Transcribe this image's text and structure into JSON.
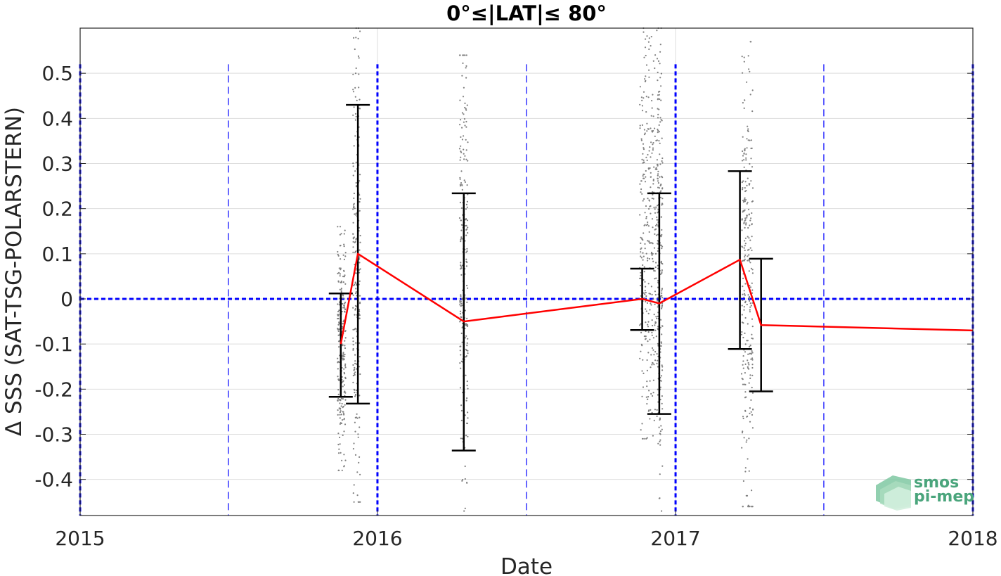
{
  "chart_data": {
    "type": "scatter",
    "title": "0°≤|LAT|≤ 80°",
    "xlabel": "Date",
    "ylabel": "Δ SSS (SAT-TSG-POLARSTERN)",
    "x_range": [
      "2015-01-01",
      "2018-01-01"
    ],
    "ylim": [
      -0.48,
      0.6
    ],
    "x_tick_labels": [
      "2015",
      "2016",
      "2017",
      "2018"
    ],
    "x_ticks": [
      "2015-01-01",
      "2016-01-01",
      "2017-01-01",
      "2018-01-01"
    ],
    "y_ticks": [
      0.5,
      0.4,
      0.3,
      0.2,
      0.1,
      0,
      -0.1,
      -0.2,
      -0.3,
      -0.4
    ],
    "y_tick_labels": [
      "0.5",
      "0.4",
      "0.3",
      "0.2",
      "0.1",
      "0",
      "-0.1",
      "-0.2",
      "-0.3",
      "-0.4"
    ],
    "grid": true,
    "colors": {
      "mean_line": "#ff0000",
      "error_bars": "#000000",
      "scatter": "#808080",
      "reference_lines": "#0000ff",
      "grid": "#dddddd",
      "logo": "#4aa57c"
    },
    "series": [
      {
        "type": "line",
        "points": [
          {
            "x": "2015-11-17",
            "y": -0.1
          },
          {
            "x": "2015-12-08",
            "y": 0.1
          },
          {
            "x": "2016-04-16",
            "y": -0.05
          },
          {
            "x": "2016-11-21",
            "y": 0.0
          },
          {
            "x": "2016-12-12",
            "y": -0.01
          },
          {
            "x": "2017-03-21",
            "y": 0.087
          },
          {
            "x": "2017-04-16",
            "y": -0.058
          },
          {
            "x": "2018-01-01",
            "y": -0.07
          }
        ]
      },
      {
        "type": "errorbar",
        "bars": [
          {
            "x": "2015-11-17",
            "low": -0.217,
            "high": 0.012
          },
          {
            "x": "2015-12-08",
            "low": -0.232,
            "high": 0.43
          },
          {
            "x": "2016-04-16",
            "low": -0.336,
            "high": 0.234
          },
          {
            "x": "2016-11-21",
            "low": -0.069,
            "high": 0.067
          },
          {
            "x": "2016-12-12",
            "low": -0.255,
            "high": 0.234
          },
          {
            "x": "2017-03-21",
            "low": -0.111,
            "high": 0.283
          },
          {
            "x": "2017-04-16",
            "low": -0.205,
            "high": 0.089
          }
        ]
      },
      {
        "type": "scatter-cloud",
        "clusters": [
          {
            "x_start": "2015-11-13",
            "x_end": "2015-11-23",
            "y_min": -0.38,
            "y_max": 0.16
          },
          {
            "x_start": "2015-12-02",
            "x_end": "2015-12-11",
            "y_min": -0.45,
            "y_max": 0.6
          },
          {
            "x_start": "2016-04-11",
            "x_end": "2016-04-21",
            "y_min": -0.47,
            "y_max": 0.54
          },
          {
            "x_start": "2016-11-18",
            "x_end": "2016-12-11",
            "y_min": -0.31,
            "y_max": 0.6
          },
          {
            "x_start": "2016-12-10",
            "x_end": "2016-12-16",
            "y_min": -0.47,
            "y_max": 0.6
          },
          {
            "x_start": "2017-03-23",
            "x_end": "2017-04-06",
            "y_min": -0.46,
            "y_max": 0.57
          }
        ]
      }
    ],
    "reference_lines": {
      "horizontal": [
        0
      ],
      "vertical_major": [
        "2015-01-01",
        "2016-01-01",
        "2017-01-01",
        "2018-01-01"
      ],
      "vertical_minor": [
        "2015-07-02",
        "2016-07-02",
        "2017-07-02"
      ]
    }
  },
  "logo": {
    "line1": "smos",
    "line2": "pi-mep"
  }
}
